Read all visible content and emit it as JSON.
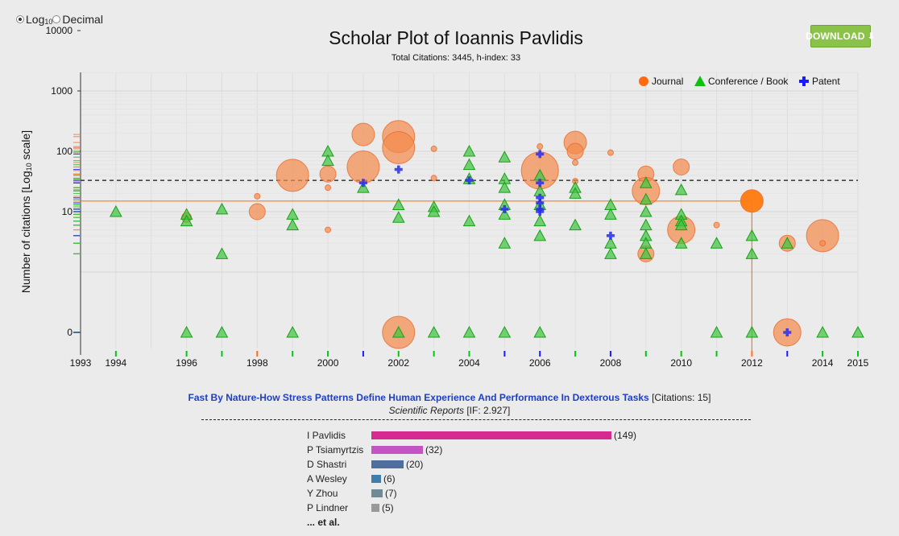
{
  "scale_toggle": {
    "log_label": "Log",
    "log_sub": "10",
    "decimal_label": "Decimal",
    "selected": "log"
  },
  "download_label": "DOWNLOAD",
  "chart_data": {
    "type": "scatter",
    "title": "Scholar Plot of Ioannis Pavlidis",
    "subtitle": "Total Citations: 3445, h-index: 33",
    "ylabel_prefix": "Number of citations [Log",
    "ylabel_sub": "10",
    "ylabel_suffix": " scale]",
    "y_scale": "log",
    "ylim": [
      0,
      20000
    ],
    "xlim": [
      1993,
      2015
    ],
    "x_ticks": [
      1993,
      1994,
      1996,
      1998,
      2000,
      2002,
      2004,
      2006,
      2008,
      2010,
      2012,
      2014,
      2015
    ],
    "y_ticks": [
      {
        "value": 0,
        "label": "0"
      },
      {
        "value": 10,
        "label": "10"
      },
      {
        "value": 100,
        "label": "100"
      },
      {
        "value": 1000,
        "label": "1000"
      },
      {
        "value": 10000,
        "label": "10000"
      }
    ],
    "h_index": 33,
    "h_index_line": "dashed black",
    "highlight": {
      "year": 2012,
      "citations": 15
    },
    "legend": {
      "position": "top-right",
      "entries": [
        {
          "name": "Journal",
          "marker": "circle",
          "color": "#ff6a10"
        },
        {
          "name": "Conference / Book",
          "marker": "triangle",
          "color": "#10c010"
        },
        {
          "name": "Patent",
          "marker": "cross",
          "color": "#1a1aff"
        }
      ]
    },
    "colors": {
      "journal": "#f58a4c",
      "conference": "#3ec43e",
      "patent": "#2a2aee",
      "highlight": "#ff7a10"
    },
    "series": [
      {
        "name": "Journal",
        "points": [
          [
            1996,
            8,
            1
          ],
          [
            1998,
            18,
            0
          ],
          [
            1998,
            10,
            2
          ],
          [
            1999,
            40,
            5
          ],
          [
            2000,
            25,
            0
          ],
          [
            2000,
            42,
            2
          ],
          [
            2000,
            5,
            0
          ],
          [
            2001,
            190,
            3
          ],
          [
            2001,
            55,
            5
          ],
          [
            2002,
            175,
            5
          ],
          [
            2002,
            115,
            5
          ],
          [
            2002,
            0,
            5
          ],
          [
            2003,
            110,
            0
          ],
          [
            2003,
            36,
            0
          ],
          [
            2006,
            120,
            0
          ],
          [
            2006,
            48,
            6
          ],
          [
            2007,
            140,
            3
          ],
          [
            2007,
            100,
            2
          ],
          [
            2007,
            65,
            0
          ],
          [
            2007,
            32,
            0
          ],
          [
            2008,
            95,
            0
          ],
          [
            2009,
            42,
            2
          ],
          [
            2009,
            22,
            4
          ],
          [
            2009,
            2,
            2
          ],
          [
            2010,
            55,
            2
          ],
          [
            2010,
            5,
            4
          ],
          [
            2011,
            6,
            0
          ],
          [
            2012,
            15,
            3
          ],
          [
            2013,
            3,
            2
          ],
          [
            2013,
            0,
            4
          ],
          [
            2014,
            4,
            5
          ],
          [
            2014,
            3,
            0
          ]
        ]
      },
      {
        "name": "Conference / Book",
        "points": [
          [
            1994,
            10
          ],
          [
            1996,
            9
          ],
          [
            1996,
            7
          ],
          [
            1996,
            0
          ],
          [
            1997,
            11
          ],
          [
            1997,
            2
          ],
          [
            1997,
            0
          ],
          [
            1999,
            9
          ],
          [
            1999,
            6
          ],
          [
            1999,
            0
          ],
          [
            2000,
            100
          ],
          [
            2000,
            70
          ],
          [
            2001,
            25
          ],
          [
            2002,
            13
          ],
          [
            2002,
            8
          ],
          [
            2002,
            0
          ],
          [
            2003,
            12
          ],
          [
            2003,
            10
          ],
          [
            2003,
            0
          ],
          [
            2004,
            100
          ],
          [
            2004,
            60
          ],
          [
            2004,
            35
          ],
          [
            2004,
            7
          ],
          [
            2004,
            0
          ],
          [
            2005,
            80
          ],
          [
            2005,
            35
          ],
          [
            2005,
            25
          ],
          [
            2005,
            13
          ],
          [
            2005,
            9
          ],
          [
            2005,
            3
          ],
          [
            2005,
            0
          ],
          [
            2006,
            40
          ],
          [
            2006,
            22
          ],
          [
            2006,
            13
          ],
          [
            2006,
            7
          ],
          [
            2006,
            4
          ],
          [
            2006,
            0
          ],
          [
            2007,
            25
          ],
          [
            2007,
            20
          ],
          [
            2007,
            6
          ],
          [
            2008,
            13
          ],
          [
            2008,
            9
          ],
          [
            2008,
            3
          ],
          [
            2008,
            2
          ],
          [
            2009,
            30
          ],
          [
            2009,
            16
          ],
          [
            2009,
            10
          ],
          [
            2009,
            6
          ],
          [
            2009,
            4
          ],
          [
            2009,
            3
          ],
          [
            2009,
            2
          ],
          [
            2010,
            23
          ],
          [
            2010,
            9
          ],
          [
            2010,
            7
          ],
          [
            2010,
            6
          ],
          [
            2010,
            3
          ],
          [
            2011,
            3
          ],
          [
            2011,
            0
          ],
          [
            2012,
            4
          ],
          [
            2012,
            2
          ],
          [
            2012,
            0
          ],
          [
            2013,
            3
          ],
          [
            2014,
            0
          ],
          [
            2015,
            0
          ]
        ]
      },
      {
        "name": "Patent",
        "points": [
          [
            2001,
            30
          ],
          [
            2002,
            50
          ],
          [
            2004,
            33
          ],
          [
            2005,
            11
          ],
          [
            2006,
            90
          ],
          [
            2006,
            30
          ],
          [
            2006,
            17
          ],
          [
            2006,
            14
          ],
          [
            2006,
            11
          ],
          [
            2006,
            10
          ],
          [
            2008,
            4
          ],
          [
            2013,
            0
          ]
        ]
      }
    ],
    "year_markers": [
      {
        "year": 1994,
        "color": "#10c010"
      },
      {
        "year": 1996,
        "color": "#10c010"
      },
      {
        "year": 1997,
        "color": "#10c010"
      },
      {
        "year": 1998,
        "color": "#ff6a10"
      },
      {
        "year": 1999,
        "color": "#10c010"
      },
      {
        "year": 2000,
        "color": "#10c010"
      },
      {
        "year": 2001,
        "color": "#1a1aff"
      },
      {
        "year": 2002,
        "color": "#10c010"
      },
      {
        "year": 2003,
        "color": "#10c010"
      },
      {
        "year": 2004,
        "color": "#10c010"
      },
      {
        "year": 2005,
        "color": "#1a1aff"
      },
      {
        "year": 2006,
        "color": "#1a1aff"
      },
      {
        "year": 2007,
        "color": "#10c010"
      },
      {
        "year": 2008,
        "color": "#1a1aff"
      },
      {
        "year": 2009,
        "color": "#10c010"
      },
      {
        "year": 2010,
        "color": "#10c010"
      },
      {
        "year": 2011,
        "color": "#10c010"
      },
      {
        "year": 2012,
        "color": "#ff6a10"
      },
      {
        "year": 2013,
        "color": "#1a1aff"
      },
      {
        "year": 2014,
        "color": "#10c010"
      },
      {
        "year": 2015,
        "color": "#10c010"
      }
    ]
  },
  "selected_paper": {
    "title": "Fast By Nature-How Stress Patterns Define Human Experience And Performance In Dexterous Tasks",
    "citations_text": " [Citations: 15]",
    "journal": "Scientific Reports",
    "if_text": " [IF: 2.927]",
    "authors": [
      {
        "name": "I Pavlidis",
        "count": 149,
        "label": "(149)",
        "color": "#d52a8f"
      },
      {
        "name": "P Tsiamyrtzis",
        "count": 32,
        "label": "(32)",
        "color": "#c454c4"
      },
      {
        "name": "D Shastri",
        "count": 20,
        "label": "(20)",
        "color": "#4e6e9e"
      },
      {
        "name": "A Wesley",
        "count": 6,
        "label": "(6)",
        "color": "#3e7ea8"
      },
      {
        "name": "Y Zhou",
        "count": 7,
        "label": "(7)",
        "color": "#718a96"
      },
      {
        "name": "P Lindner",
        "count": 5,
        "label": "(5)",
        "color": "#999999"
      }
    ],
    "etal": "... et al."
  }
}
